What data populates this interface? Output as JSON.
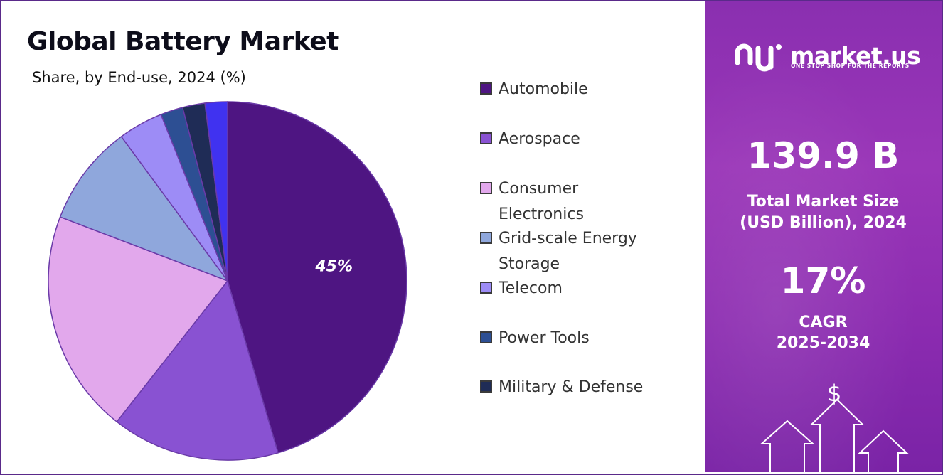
{
  "header": {
    "title": "Global Battery Market",
    "subtitle": "Share, by End-use, 2024 (%)"
  },
  "chart_data": {
    "type": "pie",
    "title": "Global Battery Market",
    "subtitle": "Share, by End-use, 2024 (%)",
    "categories": [
      "Automobile",
      "Aerospace",
      "Consumer Electronics",
      "Grid-scale Energy Storage",
      "Telecom",
      "Power Tools",
      "Military & Defense",
      ""
    ],
    "values": [
      45,
      15,
      20,
      9,
      4,
      2,
      2,
      2
    ],
    "colors": [
      "#4e1582",
      "#8952d2",
      "#e2a8ec",
      "#8fa7dc",
      "#9d8cf6",
      "#2d4f93",
      "#1f2c56",
      "#4032f0"
    ],
    "data_labels": [
      "45%",
      "",
      "",
      "",
      "",
      "",
      "",
      ""
    ],
    "legend": {
      "placement": "right",
      "items": [
        {
          "label": "Automobile",
          "color": "#4e1582"
        },
        {
          "label": "Aerospace",
          "color": "#8952d2"
        },
        {
          "label": "Consumer Electronics",
          "color": "#e2a8ec"
        },
        {
          "label": "Grid-scale Energy Storage",
          "color": "#8fa7dc"
        },
        {
          "label": "Telecom",
          "color": "#9d8cf6"
        },
        {
          "label": "Power Tools",
          "color": "#2d4f93"
        },
        {
          "label": "Military & Defense",
          "color": "#1f2c56"
        }
      ]
    }
  },
  "sidebar": {
    "logo_text": "market.us",
    "logo_tagline": "ONE STOP SHOP FOR THE REPORTS",
    "market_size_value": "139.9 B",
    "market_size_label_line1": "Total Market Size",
    "market_size_label_line2": "(USD Billion), 2024",
    "cagr_value": "17%",
    "cagr_label_line1": "CAGR",
    "cagr_label_line2": "2025-2034",
    "dollar_glyph": "$",
    "accent_color": "#8f31b4"
  }
}
